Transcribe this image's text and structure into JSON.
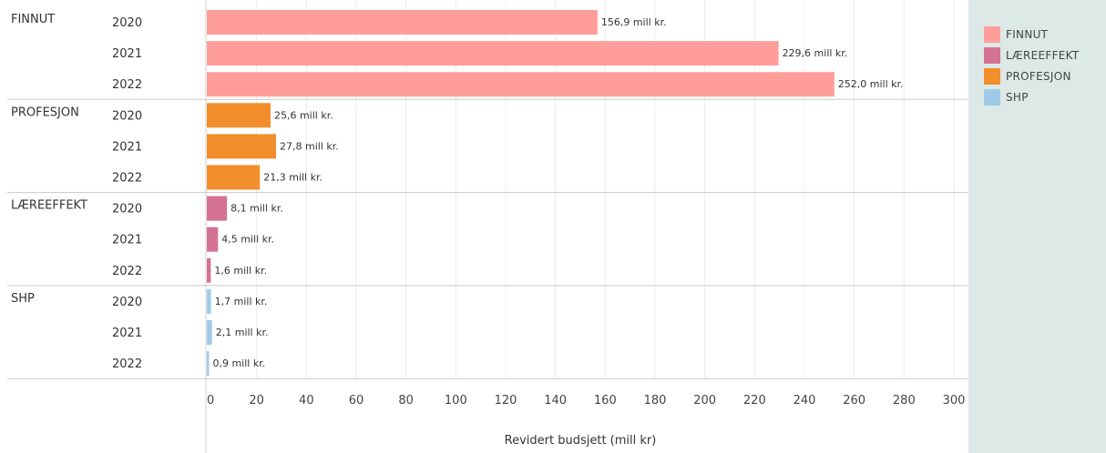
{
  "chart_data": {
    "type": "bar",
    "orientation": "horizontal",
    "xlabel": "Revidert budsjett (mill kr)",
    "xlim": [
      0,
      300
    ],
    "xticks": [
      0,
      20,
      40,
      60,
      80,
      100,
      120,
      140,
      160,
      180,
      200,
      220,
      240,
      260,
      280,
      300
    ],
    "grid": true,
    "legend_position": "right",
    "value_suffix": " mill kr.",
    "groups": [
      {
        "name": "FINNUT",
        "color": "#ff9d9a",
        "rows": [
          {
            "year": "2020",
            "value": 156.9,
            "label": "156,9 mill kr."
          },
          {
            "year": "2021",
            "value": 229.6,
            "label": "229,6 mill kr."
          },
          {
            "year": "2022",
            "value": 252.0,
            "label": "252,0 mill kr."
          }
        ]
      },
      {
        "name": "PROFESJON",
        "color": "#f28e2b",
        "rows": [
          {
            "year": "2020",
            "value": 25.6,
            "label": "25,6 mill kr."
          },
          {
            "year": "2021",
            "value": 27.8,
            "label": "27,8 mill kr."
          },
          {
            "year": "2022",
            "value": 21.3,
            "label": "21,3 mill kr."
          }
        ]
      },
      {
        "name": "LÆREEFFEKT",
        "color": "#d37295",
        "rows": [
          {
            "year": "2020",
            "value": 8.1,
            "label": "8,1 mill kr."
          },
          {
            "year": "2021",
            "value": 4.5,
            "label": "4,5 mill kr."
          },
          {
            "year": "2022",
            "value": 1.6,
            "label": "1,6 mill kr."
          }
        ]
      },
      {
        "name": "SHP",
        "color": "#a0cbe8",
        "rows": [
          {
            "year": "2020",
            "value": 1.7,
            "label": "1,7 mill kr."
          },
          {
            "year": "2021",
            "value": 2.1,
            "label": "2,1 mill kr."
          },
          {
            "year": "2022",
            "value": 0.9,
            "label": "0,9 mill kr."
          }
        ]
      }
    ]
  },
  "legend": {
    "items": [
      {
        "name": "FINNUT",
        "color": "#ff9d9a"
      },
      {
        "name": "LÆREEFFEKT",
        "color": "#d37295"
      },
      {
        "name": "PROFESJON",
        "color": "#f28e2b"
      },
      {
        "name": "SHP",
        "color": "#a0cbe8"
      }
    ]
  }
}
